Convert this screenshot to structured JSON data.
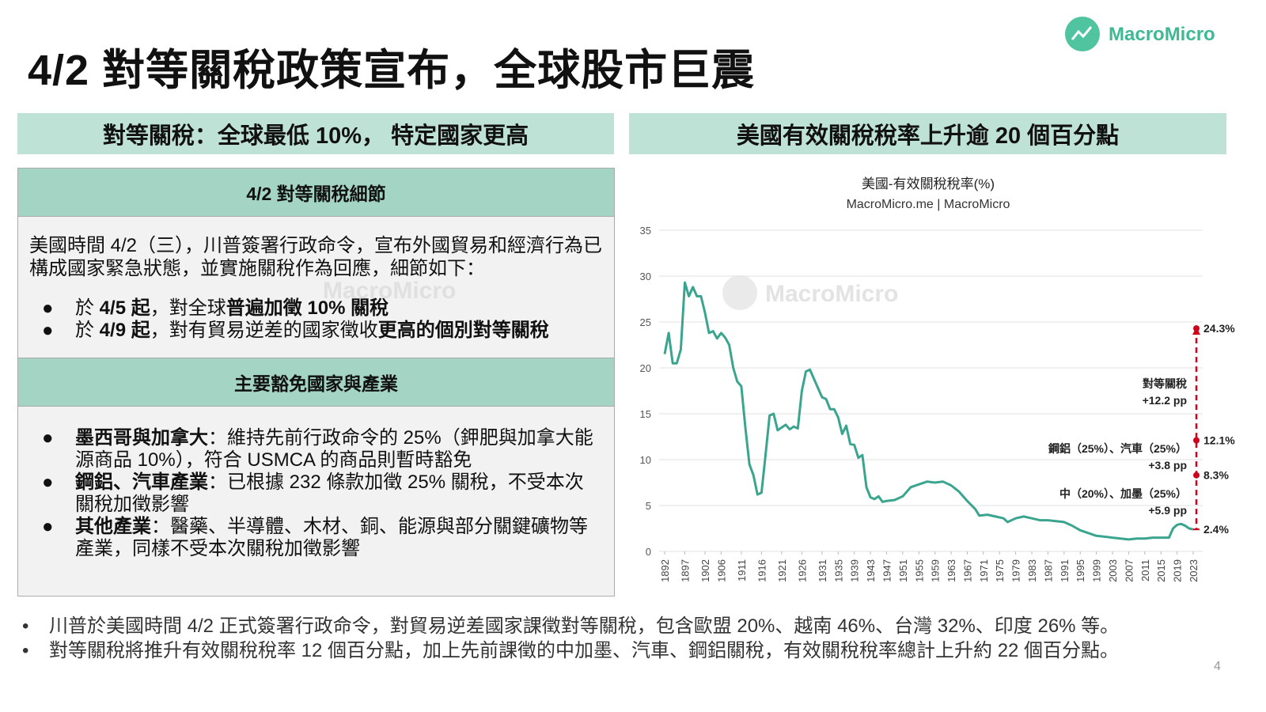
{
  "title": "4/2 對等關稅政策宣布，全球股市巨震",
  "logo": "MacroMicro",
  "left": {
    "header": "對等關稅：全球最低 10%， 特定國家更高",
    "section1": {
      "heading": "4/2 對等關稅細節",
      "intro": "美國時間 4/2（三），川普簽署行政命令，宣布外國貿易和經濟行為已構成國家緊急狀態，並實施關稅作為回應，細節如下：",
      "bullets": [
        [
          {
            "text": "於 "
          },
          {
            "text": "4/5 起",
            "bold": true
          },
          {
            "text": "，對全球"
          },
          {
            "text": "普遍加徵 10% 關稅",
            "bold": true
          }
        ],
        [
          {
            "text": "於 "
          },
          {
            "text": "4/9 起",
            "bold": true
          },
          {
            "text": "，對有貿易逆差的國家徵收"
          },
          {
            "text": "更高的個別對等關稅",
            "bold": true
          }
        ]
      ]
    },
    "section2": {
      "heading": "主要豁免國家與產業",
      "bullets": [
        [
          {
            "text": "墨西哥與加拿大",
            "bold": true
          },
          {
            "text": "：維持先前行政命令的 25%（鉀肥與加拿大能源商品 10%），符合 USMCA 的商品則暫時豁免"
          }
        ],
        [
          {
            "text": "鋼鋁、汽車產業",
            "bold": true
          },
          {
            "text": "：已根據 232 條款加徵 25% 關稅，不受本次關稅加徵影響"
          }
        ],
        [
          {
            "text": "其他產業",
            "bold": true
          },
          {
            "text": "：醫藥、半導體、木材、銅、能源與部分關鍵礦物等產業，同樣不受本次關稅加徵影響"
          }
        ]
      ]
    },
    "watermark": "MacroMicro"
  },
  "right": {
    "header": "美國有效關稅稅率上升逾 20 個百分點"
  },
  "chart_data": {
    "type": "line",
    "title": "美國-有效關稅稅率(%)",
    "subtitle": "MacroMicro.me | MacroMicro",
    "watermark": "MacroMicro",
    "color": "#3aa58f",
    "x": [
      1892,
      1893,
      1894,
      1895,
      1896,
      1897,
      1898,
      1899,
      1900,
      1901,
      1902,
      1903,
      1904,
      1905,
      1906,
      1907,
      1908,
      1909,
      1910,
      1911,
      1912,
      1913,
      1914,
      1915,
      1916,
      1917,
      1918,
      1919,
      1920,
      1921,
      1922,
      1923,
      1924,
      1925,
      1926,
      1927,
      1928,
      1929,
      1930,
      1931,
      1932,
      1933,
      1934,
      1935,
      1936,
      1937,
      1938,
      1939,
      1940,
      1941,
      1942,
      1943,
      1944,
      1945,
      1946,
      1947,
      1949,
      1951,
      1953,
      1955,
      1957,
      1959,
      1961,
      1963,
      1965,
      1967,
      1969,
      1970,
      1972,
      1974,
      1976,
      1977,
      1979,
      1981,
      1983,
      1985,
      1987,
      1989,
      1991,
      1993,
      1995,
      1997,
      1999,
      2001,
      2003,
      2005,
      2007,
      2009,
      2011,
      2013,
      2015,
      2017,
      2018,
      2019,
      2020,
      2021,
      2022,
      2023
    ],
    "values": [
      21.5,
      23.8,
      20.5,
      20.5,
      22,
      29.3,
      27.8,
      28.8,
      27.8,
      27.8,
      26,
      23.8,
      24,
      23.2,
      23.8,
      23.3,
      22.5,
      20,
      18.5,
      18,
      13.5,
      9.5,
      8.3,
      6.2,
      6.4,
      10.5,
      14.8,
      15,
      13.2,
      13.5,
      13.8,
      13.3,
      13.6,
      13.4,
      17.5,
      19.6,
      19.8,
      18.8,
      17.8,
      16.8,
      16.6,
      15.5,
      15.5,
      14.6,
      12.8,
      13.7,
      11.7,
      11.6,
      10.2,
      10.5,
      7,
      5.9,
      5.7,
      6,
      5.4,
      5.5,
      5.6,
      6,
      7,
      7.3,
      7.6,
      7.5,
      7.6,
      7.2,
      6.5,
      5.5,
      4.6,
      3.9,
      4,
      3.8,
      3.6,
      3.2,
      3.6,
      3.8,
      3.6,
      3.4,
      3.4,
      3.3,
      3.2,
      2.8,
      2.3,
      2,
      1.7,
      1.6,
      1.5,
      1.4,
      1.3,
      1.4,
      1.4,
      1.5,
      1.5,
      1.5,
      2.5,
      2.9,
      3,
      2.8,
      2.5,
      2.4
    ],
    "xlim": [
      1892,
      2023
    ],
    "xticks": [
      1892,
      1897,
      1902,
      1906,
      1911,
      1916,
      1921,
      1926,
      1931,
      1935,
      1939,
      1943,
      1947,
      1951,
      1955,
      1959,
      1963,
      1967,
      1971,
      1975,
      1979,
      1983,
      1987,
      1991,
      1995,
      1999,
      2003,
      2007,
      2011,
      2015,
      2019,
      2023
    ],
    "ylim": [
      0,
      35
    ],
    "yticks": [
      0,
      5,
      10,
      15,
      20,
      25,
      30,
      35
    ],
    "grid": true,
    "markers": [
      {
        "value": 24.3,
        "label": "24.3%"
      },
      {
        "value": 12.1,
        "label": "12.1%"
      },
      {
        "value": 8.3,
        "label": "8.3%"
      },
      {
        "value": 2.4,
        "label": "2.4%"
      }
    ],
    "marker_color": "#d0021b",
    "notes": [
      [
        "對等關稅",
        "+12.2 pp"
      ],
      [
        "鋼鋁（25%）、汽車（25%）",
        "+3.8 pp"
      ],
      [
        "中（20%）、加墨（25%）",
        "+5.9 pp"
      ]
    ]
  },
  "footer_bullets": [
    "川普於美國時間 4/2 正式簽署行政命令，對貿易逆差國家課徵對等關稅，包含歐盟 20%、越南 46%、台灣 32%、印度 26% 等。",
    "對等關稅將推升有效關稅稅率 12 個百分點，加上先前課徵的中加墨、汽車、鋼鋁關稅，有效關稅稅率總計上升約 22 個百分點。"
  ],
  "page_number": "4"
}
